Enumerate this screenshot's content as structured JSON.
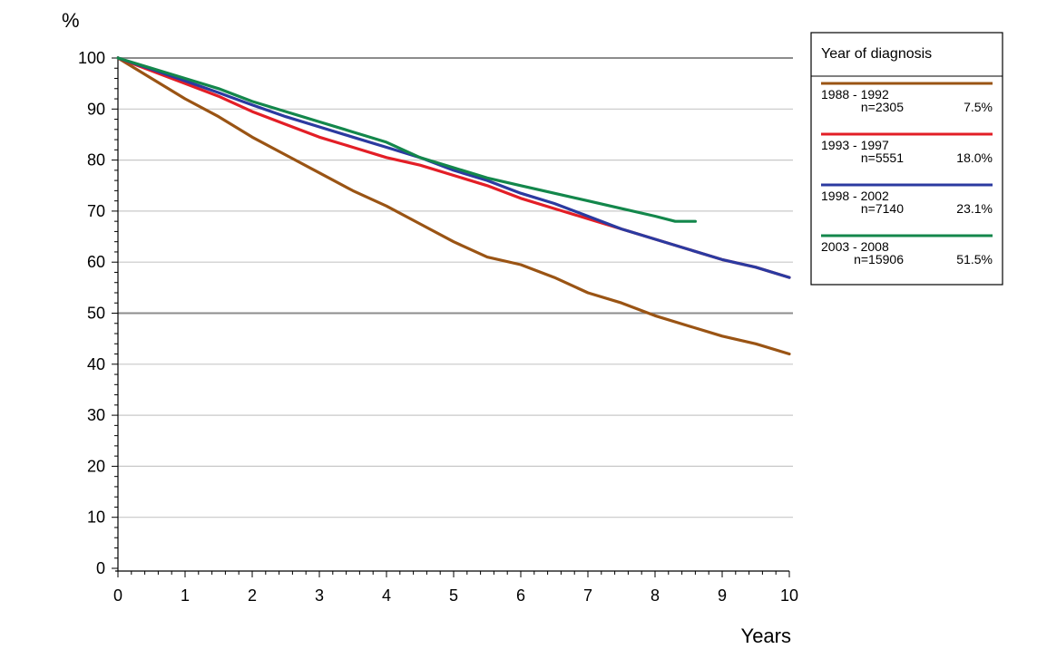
{
  "chart_data": {
    "type": "line",
    "xlabel": "Years",
    "ylabel": "%",
    "xlim": [
      0,
      10
    ],
    "ylim": [
      0,
      100
    ],
    "x_ticks": [
      0,
      1,
      2,
      3,
      4,
      5,
      6,
      7,
      8,
      9,
      10
    ],
    "y_ticks": [
      0,
      10,
      20,
      30,
      40,
      50,
      60,
      70,
      80,
      90,
      100
    ],
    "grid": "horizontal",
    "legend": {
      "title": "Year of diagnosis",
      "placement": "top-right outside"
    },
    "series": [
      {
        "name": "1988 - 1992",
        "n": "n=2305",
        "share": "7.5%",
        "color": "#9a5414",
        "x": [
          0,
          0.5,
          1,
          1.5,
          2,
          2.5,
          3,
          3.5,
          4,
          4.5,
          5,
          5.5,
          6,
          6.5,
          7,
          7.5,
          8,
          8.5,
          9,
          9.5,
          10
        ],
        "y": [
          100,
          96,
          92,
          88.5,
          84.5,
          81,
          77.5,
          74,
          71,
          67.5,
          64,
          61,
          59.5,
          57,
          54,
          52,
          49.5,
          47.5,
          45.5,
          44,
          42
        ]
      },
      {
        "name": "1993 - 1997",
        "n": "n=5551",
        "share": "18.0%",
        "color": "#e31e26",
        "x": [
          0,
          0.5,
          1,
          1.5,
          2,
          2.5,
          3,
          3.5,
          4,
          4.5,
          5,
          5.5,
          6,
          6.5,
          7,
          7.5,
          8,
          8.5,
          9,
          9.5,
          10
        ],
        "y": [
          100,
          97.5,
          95,
          92.5,
          89.5,
          87,
          84.5,
          82.5,
          80.5,
          79,
          77,
          75,
          72.5,
          70.5,
          68.5,
          66.5,
          64.5,
          62.5,
          60.5,
          59,
          57
        ]
      },
      {
        "name": "1998 - 2002",
        "n": "n=7140",
        "share": "23.1%",
        "color": "#2b3aa0",
        "x": [
          0,
          0.5,
          1,
          1.5,
          2,
          2.5,
          3,
          3.5,
          4,
          4.5,
          5,
          5.5,
          6,
          6.5,
          7,
          7.5,
          8,
          8.5,
          9,
          9.5,
          10
        ],
        "y": [
          100,
          97.8,
          95.5,
          93.2,
          90.8,
          88.5,
          86.5,
          84.5,
          82.5,
          80.5,
          78,
          76,
          73.5,
          71.5,
          69,
          66.5,
          64.5,
          62.5,
          60.5,
          59,
          57
        ]
      },
      {
        "name": "2003 - 2008",
        "n": "n=15906",
        "share": "51.5%",
        "color": "#13874b",
        "x": [
          0,
          0.5,
          1,
          1.5,
          2,
          2.5,
          3,
          3.5,
          4,
          4.5,
          5,
          5.5,
          6,
          6.5,
          7,
          7.5,
          8,
          8.3,
          8.6
        ],
        "y": [
          100,
          98,
          96,
          94,
          91.5,
          89.5,
          87.5,
          85.5,
          83.5,
          80.5,
          78.5,
          76.5,
          75,
          73.5,
          72,
          70.5,
          69,
          68,
          68
        ]
      }
    ]
  }
}
